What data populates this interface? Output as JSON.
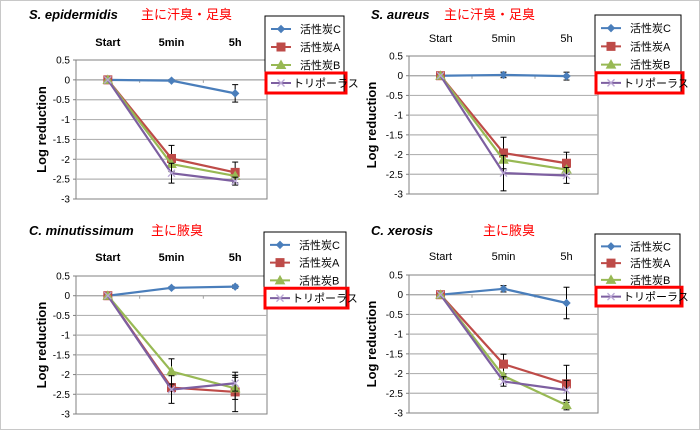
{
  "chart_data": [
    {
      "type": "line",
      "title": "S. epidermidis",
      "subtitle": "主に汗臭・足臭",
      "categories": [
        "Start",
        "5min",
        "5h"
      ],
      "ylabel": "Log reduction",
      "xlabel": "",
      "ylim": [
        -3,
        0.5
      ],
      "yticks": [
        "0.5",
        "0",
        "-0.5",
        "-1",
        "-1.5",
        "-2",
        "-2.5",
        "-3"
      ],
      "grid": true,
      "legend": "top-right",
      "highlighted_legend": "トリポーラス",
      "series": [
        {
          "name": "活性炭C",
          "color": "#4a7ebb",
          "marker": "diamond",
          "values": [
            0,
            -0.02,
            -0.34
          ],
          "errors": [
            0,
            0.03,
            0.22
          ]
        },
        {
          "name": "活性炭A",
          "color": "#be4b48",
          "marker": "square",
          "values": [
            0,
            -1.98,
            -2.33
          ],
          "errors": [
            0,
            0.33,
            0.26
          ]
        },
        {
          "name": "活性炭B",
          "color": "#98b954",
          "marker": "triangle",
          "values": [
            0,
            -2.12,
            -2.42
          ],
          "errors": [
            0,
            0,
            0
          ]
        },
        {
          "name": "トリポーラス",
          "color": "#7d5fa0",
          "marker": "x",
          "values": [
            0,
            -2.35,
            -2.55
          ],
          "errors": [
            0,
            0.25,
            0.1
          ]
        }
      ]
    },
    {
      "type": "line",
      "title": "S. aureus",
      "subtitle": "主に汗臭・足臭",
      "categories": [
        "Start",
        "5min",
        "5h"
      ],
      "ylabel": "Log reduction",
      "xlabel": "",
      "ylim": [
        -3,
        0.5
      ],
      "yticks": [
        "0.5",
        "0",
        "-0.5",
        "-1",
        "-1.5",
        "-2",
        "-2.5",
        "-3"
      ],
      "grid": true,
      "legend": "top-right",
      "highlighted_legend": "トリポーラス",
      "series": [
        {
          "name": "活性炭C",
          "color": "#4a7ebb",
          "marker": "diamond",
          "values": [
            0,
            0.02,
            -0.01
          ],
          "errors": [
            0,
            0.07,
            0.1
          ]
        },
        {
          "name": "活性炭A",
          "color": "#be4b48",
          "marker": "square",
          "values": [
            0,
            -1.96,
            -2.22
          ],
          "errors": [
            0,
            0.4,
            0.28
          ]
        },
        {
          "name": "活性炭B",
          "color": "#98b954",
          "marker": "triangle",
          "values": [
            0,
            -2.13,
            -2.38
          ],
          "errors": [
            0,
            0,
            0
          ]
        },
        {
          "name": "トリポーラス",
          "color": "#7d5fa0",
          "marker": "x",
          "values": [
            0,
            -2.47,
            -2.53
          ],
          "errors": [
            0,
            0.45,
            0.2
          ]
        }
      ]
    },
    {
      "type": "line",
      "title": "C. minutissimum",
      "subtitle": "主に腋臭",
      "categories": [
        "Start",
        "5min",
        "5h"
      ],
      "ylabel": "Log reduction",
      "xlabel": "",
      "ylim": [
        -3,
        0.5
      ],
      "yticks": [
        "0.5",
        "0",
        "-0.5",
        "-1",
        "-1.5",
        "-2",
        "-2.5",
        "-3"
      ],
      "grid": true,
      "legend": "top-right",
      "highlighted_legend": "トリポーラス",
      "series": [
        {
          "name": "活性炭C",
          "color": "#4a7ebb",
          "marker": "diamond",
          "values": [
            0,
            0.2,
            0.23
          ],
          "errors": [
            0,
            0.03,
            0.04
          ]
        },
        {
          "name": "活性炭A",
          "color": "#be4b48",
          "marker": "square",
          "values": [
            0,
            -2.33,
            -2.44
          ],
          "errors": [
            0,
            0,
            0.5
          ]
        },
        {
          "name": "活性炭B",
          "color": "#98b954",
          "marker": "triangle",
          "values": [
            0,
            -1.92,
            -2.35
          ],
          "errors": [
            0,
            0.32,
            0.28
          ]
        },
        {
          "name": "トリポーラス",
          "color": "#7d5fa0",
          "marker": "x",
          "values": [
            0,
            -2.38,
            -2.22
          ],
          "errors": [
            0,
            0.35,
            0.2
          ]
        }
      ]
    },
    {
      "type": "line",
      "title": "C. xerosis",
      "subtitle": "主に腋臭",
      "categories": [
        "Start",
        "5min",
        "5h"
      ],
      "ylabel": "Log reduction",
      "xlabel": "",
      "ylim": [
        -3,
        0.5
      ],
      "yticks": [
        "0.5",
        "0",
        "-0.5",
        "-1",
        "-1.5",
        "-2",
        "-2.5",
        "-3"
      ],
      "grid": true,
      "legend": "top-right",
      "highlighted_legend": "トリポーラス",
      "series": [
        {
          "name": "活性炭C",
          "color": "#4a7ebb",
          "marker": "diamond",
          "values": [
            0,
            0.15,
            -0.21
          ],
          "errors": [
            0,
            0.08,
            0.4
          ]
        },
        {
          "name": "活性炭A",
          "color": "#be4b48",
          "marker": "square",
          "values": [
            0,
            -1.76,
            -2.26
          ],
          "errors": [
            0,
            0.25,
            0.47
          ]
        },
        {
          "name": "活性炭B",
          "color": "#98b954",
          "marker": "triangle",
          "values": [
            0,
            -2.06,
            -2.8
          ],
          "errors": [
            0,
            0,
            0.12
          ]
        },
        {
          "name": "トリポーラス",
          "color": "#7d5fa0",
          "marker": "x",
          "values": [
            0,
            -2.2,
            -2.42
          ],
          "errors": [
            0,
            0.12,
            0.25
          ]
        }
      ]
    }
  ],
  "colors": {
    "highlight_box": "#ff0000",
    "gridline": "#b3b3b3",
    "axis": "#808080"
  }
}
